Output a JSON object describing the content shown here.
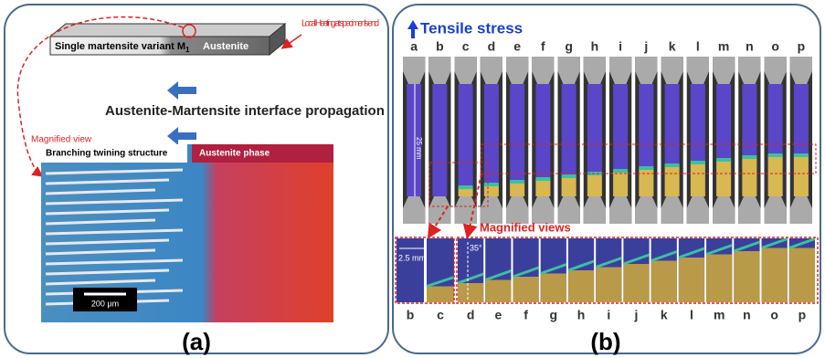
{
  "panel_a": {
    "heating_note": "Local Heating at specimen's end",
    "martensite_label": {
      "text": "Single martensite variant M",
      "subscript": "1"
    },
    "austenite_label": "Austenite",
    "propagation": "Austenite-Martensite interface propagation",
    "magnified": "Magnified view",
    "micro_left": "Branching twining structure",
    "micro_right": "Austenite phase",
    "scale_bar": "200 μm",
    "caption": "(a)"
  },
  "panel_b": {
    "stress": "Tensile stress",
    "top_letters": [
      "a",
      "b",
      "c",
      "d",
      "e",
      "f",
      "g",
      "h",
      "i",
      "j",
      "k",
      "l",
      "m",
      "n",
      "o",
      "p"
    ],
    "length": "25 mm",
    "magnified": "Magnified views",
    "small_length": "2.5 mm",
    "angle": "35°",
    "bottom_letters": [
      "b",
      "c",
      "d",
      "e",
      "f",
      "g",
      "h",
      "i",
      "j",
      "k",
      "l",
      "m",
      "n",
      "o",
      "p"
    ],
    "caption": "(b)"
  }
}
